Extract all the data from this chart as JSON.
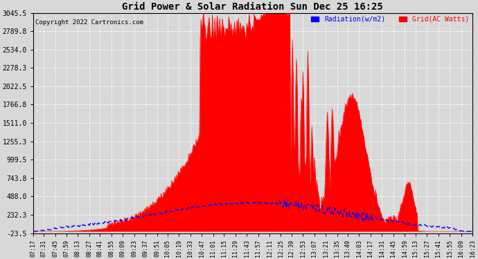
{
  "title": "Grid Power & Solar Radiation Sun Dec 25 16:25",
  "copyright": "Copyright 2022 Cartronics.com",
  "legend_radiation": "Radiation(w/m2)",
  "legend_grid": "Grid(AC Watts)",
  "yticks": [
    3045.5,
    2789.8,
    2534.0,
    2278.3,
    2022.5,
    1766.8,
    1511.0,
    1255.3,
    999.5,
    743.8,
    488.0,
    232.3,
    -23.5
  ],
  "ymin": -23.5,
  "ymax": 3045.5,
  "bg_color": "#d8d8d8",
  "grid_color": "white",
  "fill_color": "red",
  "radiation_color": "blue",
  "xtick_labels": [
    "07:17",
    "07:31",
    "07:45",
    "07:59",
    "08:13",
    "08:27",
    "08:41",
    "08:55",
    "09:09",
    "09:23",
    "09:37",
    "09:51",
    "10:05",
    "10:19",
    "10:33",
    "10:47",
    "11:01",
    "11:15",
    "11:29",
    "11:43",
    "11:57",
    "12:11",
    "12:25",
    "12:39",
    "12:53",
    "13:07",
    "13:21",
    "13:35",
    "13:49",
    "14:03",
    "14:17",
    "14:31",
    "14:45",
    "14:59",
    "15:13",
    "15:27",
    "15:41",
    "15:55",
    "16:09",
    "16:23"
  ]
}
